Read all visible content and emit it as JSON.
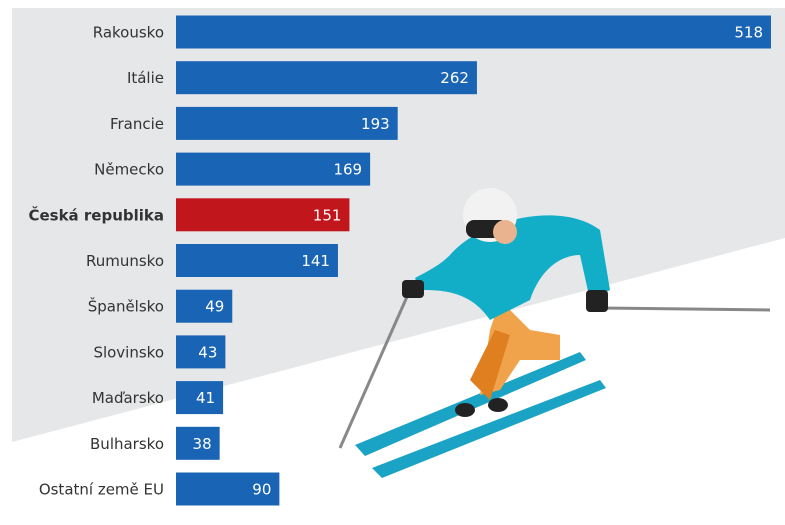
{
  "chart_data": {
    "type": "bar",
    "orientation": "horizontal",
    "categories": [
      "Rakousko",
      "Itálie",
      "Francie",
      "Německo",
      "Česká republika",
      "Rumunsko",
      "Španělsko",
      "Slovinsko",
      "Maďarsko",
      "Bulharsko",
      "Ostatní země EU"
    ],
    "values": [
      518,
      262,
      193,
      169,
      151,
      141,
      49,
      43,
      41,
      38,
      90
    ],
    "color": "#1a64b6",
    "highlight": {
      "index": 4,
      "color": "#c1161c"
    }
  }
}
